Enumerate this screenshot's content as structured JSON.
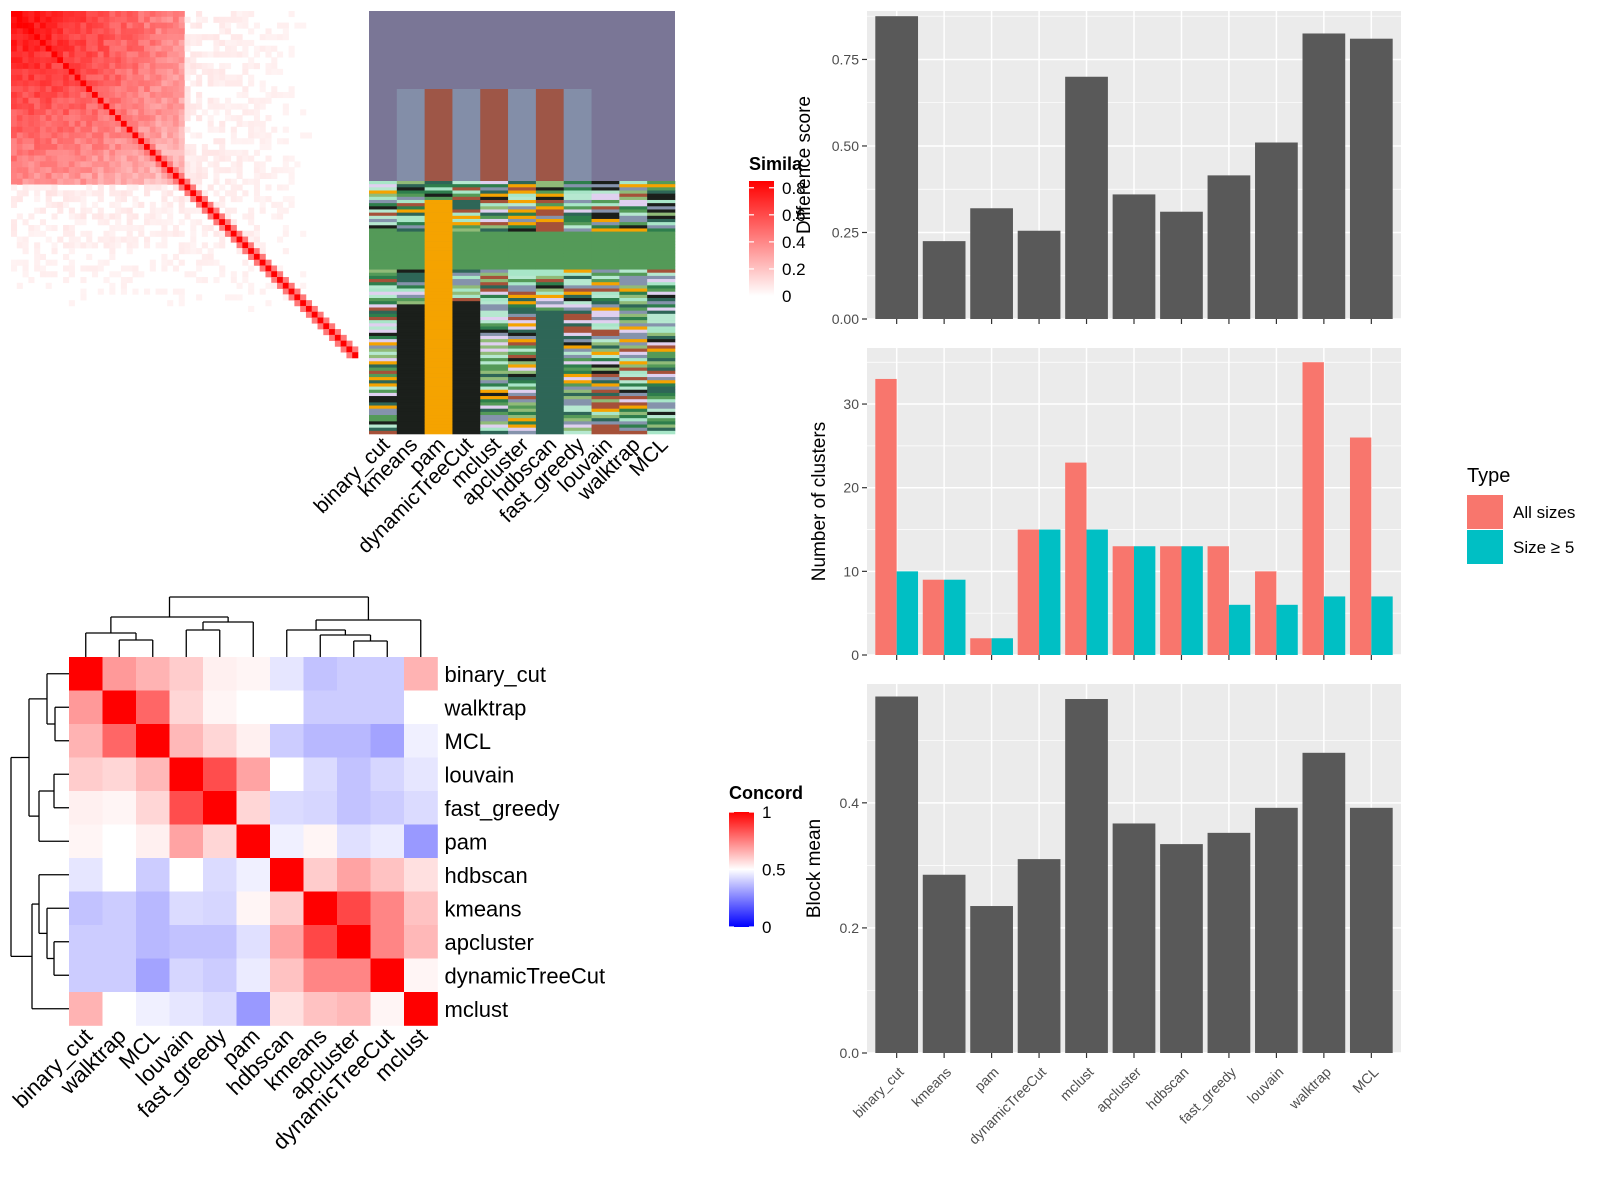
{
  "methods_order": [
    "binary_cut",
    "kmeans",
    "pam",
    "dynamicTreeCut",
    "mclust",
    "apcluster",
    "hdbscan",
    "fast_greedy",
    "louvain",
    "walktrap",
    "MCL"
  ],
  "similarity_legend": {
    "title": "Simila",
    "ticks": [
      "0.8",
      "0.6",
      "0.4",
      "0.2",
      "0"
    ]
  },
  "concordance_legend": {
    "title": "Concord",
    "ticks": [
      "1",
      "0.5",
      "0"
    ]
  },
  "type_legend": {
    "title": "Type",
    "items": [
      "All sizes",
      "Size ≥ 5"
    ]
  },
  "colors": {
    "all_sizes": "#F8766D",
    "size5": "#00BFC4",
    "bar": "#595959",
    "panel": "#EBEBEB",
    "cluster_bg": "#7A7696"
  },
  "chart_data": [
    {
      "id": "similarity-heatmap",
      "type": "heatmap",
      "title": "",
      "legend_title": "Simila",
      "color_scale": {
        "min": 0,
        "max": 0.8,
        "low": "#FFFFFF",
        "high": "#FF0000"
      }
    },
    {
      "id": "cluster-assignments",
      "type": "heatmap",
      "title": "",
      "columns": [
        "binary_cut",
        "kmeans",
        "pam",
        "dynamicTreeCut",
        "mclust",
        "apcluster",
        "hdbscan",
        "fast_greedy",
        "louvain",
        "walktrap",
        "MCL"
      ]
    },
    {
      "id": "concordance-heatmap",
      "type": "heatmap",
      "title": "",
      "legend_title": "Concord",
      "columns": [
        "binary_cut",
        "walktrap",
        "MCL",
        "louvain",
        "fast_greedy",
        "pam",
        "hdbscan",
        "kmeans",
        "apcluster",
        "dynamicTreeCut",
        "mclust"
      ],
      "rows": [
        "binary_cut",
        "walktrap",
        "MCL",
        "louvain",
        "fast_greedy",
        "pam",
        "hdbscan",
        "kmeans",
        "apcluster",
        "dynamicTreeCut",
        "mclust"
      ],
      "values": [
        [
          1.0,
          0.7,
          0.65,
          0.6,
          0.53,
          0.52,
          0.45,
          0.38,
          0.4,
          0.4,
          0.65
        ],
        [
          0.7,
          1.0,
          0.8,
          0.58,
          0.52,
          0.5,
          0.5,
          0.4,
          0.4,
          0.4,
          0.5
        ],
        [
          0.65,
          0.8,
          1.0,
          0.64,
          0.58,
          0.53,
          0.4,
          0.36,
          0.36,
          0.32,
          0.47
        ],
        [
          0.6,
          0.58,
          0.64,
          1.0,
          0.85,
          0.68,
          0.5,
          0.43,
          0.38,
          0.42,
          0.45
        ],
        [
          0.53,
          0.52,
          0.58,
          0.85,
          1.0,
          0.58,
          0.43,
          0.42,
          0.38,
          0.4,
          0.43
        ],
        [
          0.52,
          0.5,
          0.53,
          0.68,
          0.58,
          1.0,
          0.47,
          0.52,
          0.44,
          0.46,
          0.3
        ],
        [
          0.45,
          0.5,
          0.4,
          0.5,
          0.43,
          0.47,
          1.0,
          0.6,
          0.68,
          0.62,
          0.56
        ],
        [
          0.38,
          0.4,
          0.36,
          0.43,
          0.42,
          0.52,
          0.6,
          1.0,
          0.86,
          0.74,
          0.62
        ],
        [
          0.4,
          0.4,
          0.36,
          0.38,
          0.38,
          0.44,
          0.68,
          0.86,
          1.0,
          0.74,
          0.64
        ],
        [
          0.4,
          0.4,
          0.32,
          0.42,
          0.4,
          0.46,
          0.62,
          0.74,
          0.74,
          1.0,
          0.52
        ],
        [
          0.65,
          0.5,
          0.47,
          0.45,
          0.43,
          0.3,
          0.56,
          0.62,
          0.64,
          0.52,
          1.0
        ]
      ],
      "color_scale": {
        "min": 0,
        "mid": 0.5,
        "max": 1,
        "low": "#0000FF",
        "midcolor": "#FFFFFF",
        "high": "#FF0000"
      }
    },
    {
      "id": "difference-score",
      "type": "bar",
      "title": "",
      "categories": [
        "binary_cut",
        "kmeans",
        "pam",
        "dynamicTreeCut",
        "mclust",
        "apcluster",
        "hdbscan",
        "fast_greedy",
        "louvain",
        "walktrap",
        "MCL"
      ],
      "values": [
        0.875,
        0.225,
        0.32,
        0.255,
        0.7,
        0.36,
        0.31,
        0.415,
        0.51,
        0.825,
        0.81
      ],
      "xlabel": "",
      "ylabel": "Difference score",
      "ylim": [
        0,
        0.89
      ],
      "yticks": [
        0,
        0.25,
        0.5,
        0.75
      ],
      "ytick_labels": [
        "0.00",
        "0.25",
        "0.50",
        "0.75"
      ]
    },
    {
      "id": "number-of-clusters",
      "type": "bar",
      "title": "",
      "categories": [
        "binary_cut",
        "kmeans",
        "pam",
        "dynamicTreeCut",
        "mclust",
        "apcluster",
        "hdbscan",
        "fast_greedy",
        "louvain",
        "walktrap",
        "MCL"
      ],
      "series": [
        {
          "name": "All sizes",
          "values": [
            33,
            9,
            2,
            15,
            23,
            13,
            13,
            13,
            10,
            35,
            26
          ]
        },
        {
          "name": "Size ≥ 5",
          "values": [
            10,
            9,
            2,
            15,
            15,
            13,
            13,
            6,
            6,
            7,
            7
          ]
        }
      ],
      "xlabel": "",
      "ylabel": "Number of clusters",
      "ylim": [
        0,
        36.7
      ],
      "yticks": [
        0,
        10,
        20,
        30
      ],
      "ytick_labels": [
        "0",
        "10",
        "20",
        "30"
      ],
      "legend": "right"
    },
    {
      "id": "block-mean",
      "type": "bar",
      "title": "",
      "categories": [
        "binary_cut",
        "kmeans",
        "pam",
        "dynamicTreeCut",
        "mclust",
        "apcluster",
        "hdbscan",
        "fast_greedy",
        "louvain",
        "walktrap",
        "MCL"
      ],
      "values": [
        0.57,
        0.285,
        0.235,
        0.31,
        0.566,
        0.367,
        0.334,
        0.352,
        0.392,
        0.48,
        0.392
      ],
      "xlabel": "",
      "ylabel": "Block mean",
      "ylim": [
        0,
        0.59
      ],
      "yticks": [
        0,
        0.2,
        0.4
      ],
      "ytick_labels": [
        "0.0",
        "0.2",
        "0.4"
      ]
    }
  ]
}
